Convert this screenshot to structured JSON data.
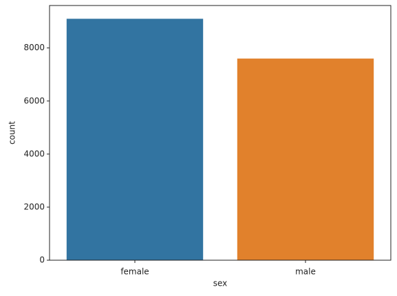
{
  "chart_data": {
    "type": "bar",
    "categories": [
      "female",
      "male"
    ],
    "values": [
      9100,
      7600
    ],
    "colors": [
      "#3274a1",
      "#e1812c"
    ],
    "xlabel": "sex",
    "ylabel": "count",
    "ylim": [
      0,
      9600
    ],
    "yticks": [
      0,
      2000,
      4000,
      6000,
      8000
    ],
    "grid": false
  }
}
